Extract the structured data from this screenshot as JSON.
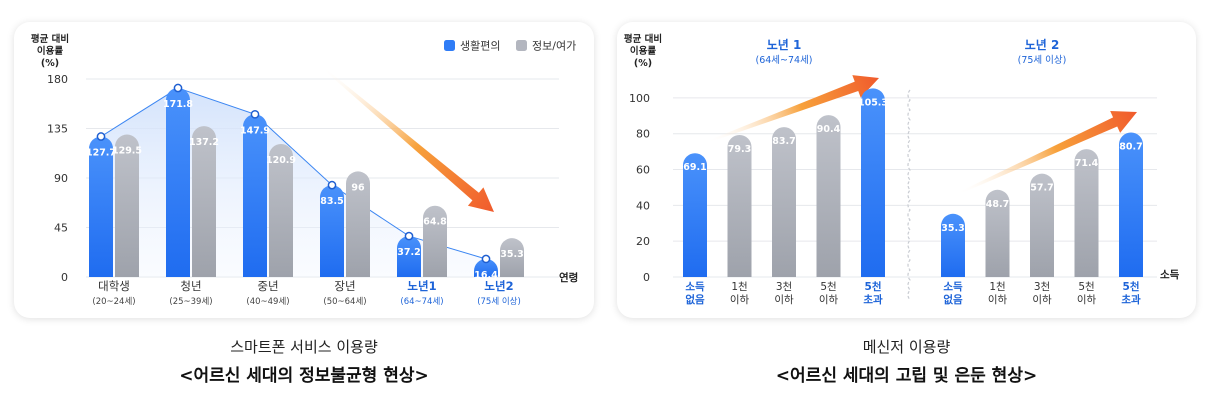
{
  "chart_data": [
    {
      "type": "bar",
      "ylabel": "평균 대비 이용률 (%)",
      "ylabel_lines": [
        "평균 대비",
        "이용률",
        "(%)"
      ],
      "xlabel": "연령",
      "yticks": [
        0,
        45,
        90,
        135,
        180
      ],
      "ylim": [
        0,
        180
      ],
      "categories": [
        {
          "name": "대학생",
          "range": "(20~24세)",
          "highlight": false
        },
        {
          "name": "청년",
          "range": "(25~39세)",
          "highlight": false
        },
        {
          "name": "중년",
          "range": "(40~49세)",
          "highlight": false
        },
        {
          "name": "장년",
          "range": "(50~64세)",
          "highlight": false
        },
        {
          "name": "노년1",
          "range": "(64~74세)",
          "highlight": true
        },
        {
          "name": "노년2",
          "range": "(75세 이상)",
          "highlight": true
        }
      ],
      "series": [
        {
          "name": "생활편의",
          "color": "#2f7cf6",
          "values": [
            127.7,
            171.8,
            147.9,
            83.5,
            37.2,
            16.4
          ]
        },
        {
          "name": "정보/여가",
          "color": "#b3b6bf",
          "values": [
            129.5,
            137.2,
            120.9,
            96,
            64.8,
            35.3
          ]
        }
      ],
      "legend_position": "top-right",
      "grid": true
    },
    {
      "type": "bar",
      "ylabel": "평균 대비 이용률 (%)",
      "ylabel_lines": [
        "평균 대비",
        "이용률",
        "(%)"
      ],
      "xlabel": "소득",
      "yticks": [
        0,
        20,
        40,
        60,
        80,
        100
      ],
      "ylim": [
        0,
        110
      ],
      "grid": true,
      "groups": [
        {
          "title": "노년 1",
          "subtitle": "(64세~74세)",
          "categories": [
            [
              "소득",
              "없음"
            ],
            [
              "1천",
              "이하"
            ],
            [
              "3천",
              "이하"
            ],
            [
              "5천",
              "이하"
            ],
            [
              "5천",
              "초과"
            ]
          ],
          "highlight": [
            true,
            false,
            false,
            false,
            true
          ],
          "values": [
            69.1,
            79.3,
            83.7,
            90.4,
            105.3
          ]
        },
        {
          "title": "노년 2",
          "subtitle": "(75세 이상)",
          "categories": [
            [
              "소득",
              "없음"
            ],
            [
              "1천",
              "이하"
            ],
            [
              "3천",
              "이하"
            ],
            [
              "5천",
              "이하"
            ],
            [
              "5천",
              "초과"
            ]
          ],
          "highlight": [
            true,
            false,
            false,
            false,
            true
          ],
          "values": [
            35.3,
            48.7,
            57.7,
            71.4,
            80.7
          ]
        }
      ],
      "colors": {
        "highlight": "#2f7cf6",
        "normal": "#b3b6bf",
        "arrow": "#f2622e",
        "accent_text": "#1e64d8"
      }
    }
  ],
  "captions": [
    {
      "sub": "스마트폰 서비스 이용량",
      "main": "<어르신 세대의 정보불균형 현상>"
    },
    {
      "sub": "메신저 이용량",
      "main": "<어르신 세대의 고립 및 은둔 현상>"
    }
  ]
}
